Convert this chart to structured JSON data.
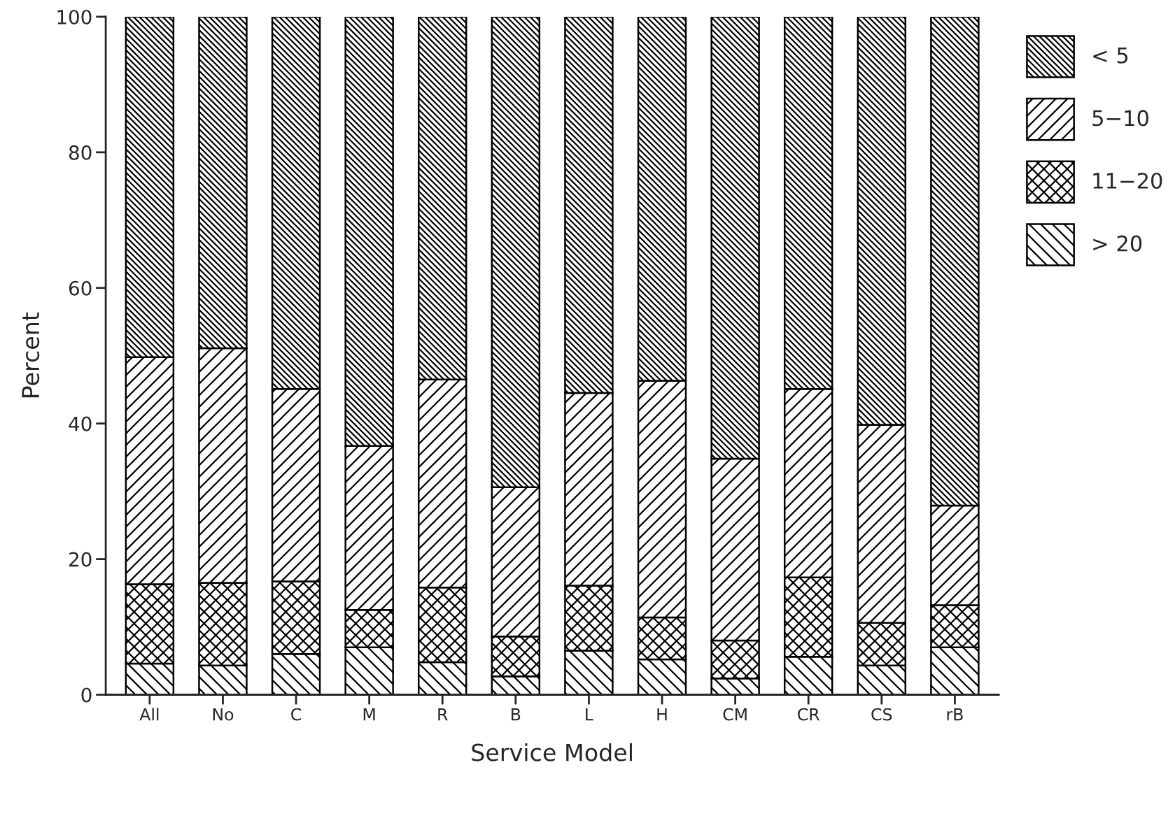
{
  "chart_data": {
    "type": "bar",
    "stacked": true,
    "xlabel": "Service Model",
    "ylabel": "Percent",
    "categories": [
      "All",
      "No",
      "C",
      "M",
      "R",
      "B",
      "L",
      "H",
      "CM",
      "CR",
      "CS",
      "rB"
    ],
    "series": [
      {
        "name": "> 20",
        "color": "#000000",
        "values": [
          4.6,
          4.3,
          6.0,
          7.0,
          4.8,
          2.7,
          6.5,
          5.2,
          2.4,
          5.6,
          4.3,
          7.0
        ]
      },
      {
        "name": "11−20",
        "color": "#000000",
        "values": [
          11.7,
          12.2,
          10.7,
          5.5,
          11.0,
          5.9,
          9.6,
          6.2,
          5.6,
          11.7,
          6.3,
          6.2
        ]
      },
      {
        "name": "5−10",
        "color": "#000000",
        "values": [
          33.5,
          34.6,
          28.4,
          24.2,
          30.7,
          22.0,
          28.4,
          34.9,
          26.8,
          27.8,
          29.2,
          14.7
        ]
      },
      {
        "name": "< 5",
        "color": "#000000",
        "values": [
          50.2,
          48.9,
          54.9,
          63.3,
          53.5,
          69.4,
          55.5,
          53.7,
          65.2,
          54.9,
          60.2,
          72.1
        ]
      }
    ],
    "ylim": [
      0,
      100
    ],
    "yticks": [
      0,
      20,
      40,
      60,
      80,
      100
    ],
    "grid": false,
    "legend": "right"
  }
}
